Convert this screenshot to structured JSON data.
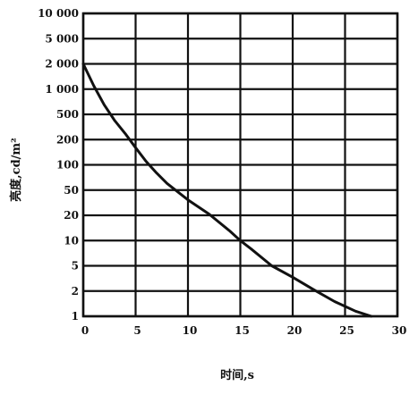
{
  "chart_data": {
    "type": "line",
    "title": "",
    "xlabel": "时间,s",
    "ylabel": "亮度,cd/m²",
    "xlim": [
      0,
      30
    ],
    "x_ticks": [
      0,
      5,
      10,
      15,
      20,
      25,
      30
    ],
    "x_tick_labels": [
      "0",
      "5",
      "10",
      "15",
      "20",
      "25",
      "30"
    ],
    "y_scale": "log",
    "ylim": [
      1,
      10000
    ],
    "y_ticks": [
      1,
      2,
      5,
      10,
      20,
      50,
      100,
      200,
      500,
      1000,
      2000,
      5000,
      10000
    ],
    "y_tick_labels": [
      "1",
      "2",
      "5",
      "10",
      "20",
      "50",
      "100",
      "200",
      "500",
      "1 000",
      "2 000",
      "5 000",
      "10 000"
    ],
    "grid": true,
    "series": [
      {
        "x": [
          0,
          1,
          2,
          3,
          4,
          5,
          6,
          7,
          8,
          10,
          12,
          14,
          15,
          16,
          18,
          20,
          22,
          24,
          26,
          27.5
        ],
        "y": [
          2000,
          1100,
          650,
          400,
          250,
          160,
          110,
          80,
          60,
          35,
          21,
          13,
          10,
          8,
          5,
          3.3,
          2.1,
          1.5,
          1.15,
          1
        ],
        "color": "#111111"
      }
    ]
  }
}
